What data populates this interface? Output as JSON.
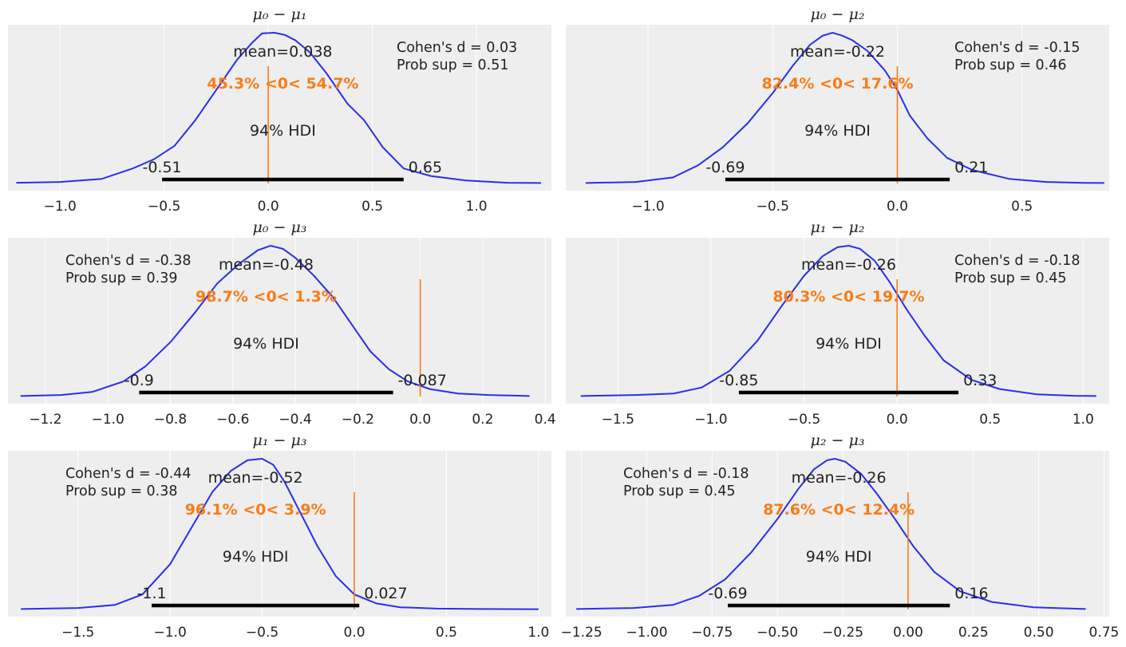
{
  "colors": {
    "kde": "#2a2eec",
    "ref": "#fa7c17",
    "hdi": "#000000",
    "background": "#eeeeee"
  },
  "chart_data": [
    {
      "type": "line",
      "title": "μ₀ − μ₁",
      "xlim": [
        -1.25,
        1.36
      ],
      "xticks": [
        -1.0,
        -0.5,
        0.0,
        0.5,
        1.0
      ],
      "xtick_labels": [
        "−1.0",
        "−0.5",
        "0.0",
        "0.5",
        "1.0"
      ],
      "mean_label": "mean=0.038",
      "ref_label": "45.3% <0< 54.7%",
      "ref_value": 0,
      "hdi_label": "94% HDI",
      "hdi": [
        -0.51,
        0.65
      ],
      "hdi_low_label": "-0.51",
      "hdi_high_label": "0.65",
      "cohen_label": "Cohen's d = 0.03",
      "prob_label": "Prob sup = 0.51",
      "stats_pos": "top-right",
      "kde_x": [
        -1.21,
        -1.0,
        -0.8,
        -0.65,
        -0.55,
        -0.45,
        -0.35,
        -0.25,
        -0.15,
        -0.08,
        -0.03,
        0.03,
        0.08,
        0.13,
        0.2,
        0.28,
        0.38,
        0.46,
        0.55,
        0.65,
        0.78,
        0.95,
        1.15,
        1.31
      ],
      "kde_y": [
        0.005,
        0.01,
        0.03,
        0.1,
        0.16,
        0.25,
        0.42,
        0.62,
        0.82,
        0.93,
        0.995,
        1.0,
        0.985,
        0.95,
        0.87,
        0.73,
        0.53,
        0.42,
        0.24,
        0.1,
        0.05,
        0.02,
        0.005,
        0.003
      ]
    },
    {
      "type": "line",
      "title": "μ₀ − μ₂",
      "xlim": [
        -1.33,
        0.85
      ],
      "xticks": [
        -1.0,
        -0.5,
        0.0,
        0.5
      ],
      "xtick_labels": [
        "−1.0",
        "−0.5",
        "0.0",
        "0.5"
      ],
      "mean_label": "mean=-0.22",
      "ref_label": "82.4% <0< 17.6%",
      "ref_value": 0,
      "hdi_label": "94% HDI",
      "hdi": [
        -0.69,
        0.21
      ],
      "hdi_low_label": "-0.69",
      "hdi_high_label": "0.21",
      "cohen_label": "Cohen's d = -0.15",
      "prob_label": "Prob sup = 0.46",
      "stats_pos": "top-right",
      "kde_x": [
        -1.25,
        -1.05,
        -0.9,
        -0.8,
        -0.7,
        -0.6,
        -0.5,
        -0.42,
        -0.35,
        -0.3,
        -0.26,
        -0.22,
        -0.18,
        -0.12,
        -0.05,
        0.0,
        0.05,
        0.12,
        0.2,
        0.3,
        0.45,
        0.6,
        0.75,
        0.83
      ],
      "kde_y": [
        0.003,
        0.01,
        0.04,
        0.12,
        0.24,
        0.4,
        0.6,
        0.78,
        0.92,
        0.98,
        1.0,
        0.98,
        0.95,
        0.88,
        0.75,
        0.62,
        0.45,
        0.3,
        0.17,
        0.09,
        0.03,
        0.01,
        0.004,
        0.003
      ]
    },
    {
      "type": "line",
      "title": "μ₀ − μ₃",
      "xlim": [
        -1.32,
        0.42
      ],
      "xticks": [
        -1.2,
        -1.0,
        -0.8,
        -0.6,
        -0.4,
        -0.2,
        0.0,
        0.2,
        0.4
      ],
      "xtick_labels": [
        "−1.2",
        "−1.0",
        "−0.8",
        "−0.6",
        "−0.4",
        "−0.2",
        "0.0",
        "0.2",
        "0.4"
      ],
      "mean_label": "mean=-0.48",
      "ref_label": "98.7% <0< 1.3%",
      "ref_value": 0,
      "hdi_label": "94% HDI",
      "hdi": [
        -0.9,
        -0.087
      ],
      "hdi_low_label": "-0.9",
      "hdi_high_label": "-0.087",
      "cohen_label": "Cohen's d = -0.38",
      "prob_label": "Prob sup = 0.39",
      "stats_pos": "top-left",
      "kde_x": [
        -1.28,
        -1.15,
        -1.05,
        -0.95,
        -0.88,
        -0.8,
        -0.72,
        -0.65,
        -0.58,
        -0.52,
        -0.48,
        -0.44,
        -0.4,
        -0.34,
        -0.28,
        -0.22,
        -0.16,
        -0.1,
        -0.04,
        0.03,
        0.12,
        0.22,
        0.35
      ],
      "kde_y": [
        0.003,
        0.01,
        0.03,
        0.1,
        0.2,
        0.36,
        0.56,
        0.75,
        0.88,
        0.97,
        1.0,
        0.98,
        0.92,
        0.8,
        0.66,
        0.48,
        0.3,
        0.18,
        0.1,
        0.05,
        0.02,
        0.01,
        0.003
      ]
    },
    {
      "type": "line",
      "title": "μ₁ − μ₂",
      "xlim": [
        -1.78,
        1.14
      ],
      "xticks": [
        -1.5,
        -1.0,
        -0.5,
        0.0,
        0.5,
        1.0
      ],
      "xtick_labels": [
        "−1.5",
        "−1.0",
        "−0.5",
        "0.0",
        "0.5",
        "1.0"
      ],
      "mean_label": "mean=-0.26",
      "ref_label": "80.3% <0< 19.7%",
      "ref_value": 0,
      "hdi_label": "94% HDI",
      "hdi": [
        -0.85,
        0.33
      ],
      "hdi_low_label": "-0.85",
      "hdi_high_label": "0.33",
      "cohen_label": "Cohen's d = -0.18",
      "prob_label": "Prob sup = 0.45",
      "stats_pos": "top-right",
      "kde_x": [
        -1.7,
        -1.4,
        -1.2,
        -1.05,
        -0.9,
        -0.75,
        -0.62,
        -0.5,
        -0.4,
        -0.32,
        -0.26,
        -0.2,
        -0.12,
        -0.04,
        0.05,
        0.15,
        0.25,
        0.4,
        0.55,
        0.75,
        0.95,
        1.07
      ],
      "kde_y": [
        0.003,
        0.01,
        0.02,
        0.06,
        0.17,
        0.37,
        0.6,
        0.8,
        0.93,
        0.99,
        1.0,
        0.98,
        0.9,
        0.76,
        0.58,
        0.4,
        0.24,
        0.11,
        0.05,
        0.015,
        0.005,
        0.003
      ]
    },
    {
      "type": "line",
      "title": "μ₁ − μ₃",
      "xlim": [
        -1.88,
        1.07
      ],
      "xticks": [
        -1.5,
        -1.0,
        -0.5,
        0.0,
        0.5,
        1.0
      ],
      "xtick_labels": [
        "−1.5",
        "−1.0",
        "−0.5",
        "0.0",
        "0.5",
        "1.0"
      ],
      "mean_label": "mean=-0.52",
      "ref_label": "96.1% <0< 3.9%",
      "ref_value": 0,
      "hdi_label": "94% HDI",
      "hdi": [
        -1.1,
        0.027
      ],
      "hdi_low_label": "-1.1",
      "hdi_high_label": "0.027",
      "cohen_label": "Cohen's d = -0.44",
      "prob_label": "Prob sup = 0.38",
      "stats_pos": "top-left",
      "kde_x": [
        -1.81,
        -1.5,
        -1.3,
        -1.15,
        -1.0,
        -0.88,
        -0.77,
        -0.67,
        -0.58,
        -0.5,
        -0.44,
        -0.38,
        -0.3,
        -0.2,
        -0.1,
        0.0,
        0.12,
        0.25,
        0.45,
        0.7,
        1.0
      ],
      "kde_y": [
        0.003,
        0.01,
        0.03,
        0.1,
        0.3,
        0.55,
        0.78,
        0.92,
        0.99,
        1.0,
        0.96,
        0.85,
        0.66,
        0.42,
        0.22,
        0.1,
        0.04,
        0.015,
        0.006,
        0.003,
        0.002
      ]
    },
    {
      "type": "line",
      "title": "μ₂ − μ₃",
      "xlim": [
        -1.31,
        0.77
      ],
      "xticks": [
        -1.25,
        -1.0,
        -0.75,
        -0.5,
        -0.25,
        0.0,
        0.25,
        0.5,
        0.75
      ],
      "xtick_labels": [
        "−1.25",
        "−1.00",
        "−0.75",
        "−0.50",
        "−0.25",
        "0.00",
        "0.25",
        "0.50",
        "0.75"
      ],
      "mean_label": "mean=-0.26",
      "ref_label": "87.6% <0< 12.4%",
      "ref_value": 0,
      "hdi_label": "94% HDI",
      "hdi": [
        -0.69,
        0.16
      ],
      "hdi_low_label": "-0.69",
      "hdi_high_label": "0.16",
      "cohen_label": "Cohen's d = -0.18",
      "prob_label": "Prob sup = 0.45",
      "stats_pos": "top-left",
      "kde_x": [
        -1.27,
        -1.05,
        -0.9,
        -0.8,
        -0.7,
        -0.6,
        -0.5,
        -0.42,
        -0.36,
        -0.31,
        -0.28,
        -0.24,
        -0.18,
        -0.12,
        -0.05,
        0.02,
        0.1,
        0.2,
        0.32,
        0.48,
        0.68
      ],
      "kde_y": [
        0.003,
        0.01,
        0.03,
        0.09,
        0.2,
        0.38,
        0.6,
        0.8,
        0.93,
        0.99,
        1.0,
        0.98,
        0.9,
        0.77,
        0.6,
        0.42,
        0.25,
        0.12,
        0.05,
        0.015,
        0.003
      ]
    }
  ]
}
